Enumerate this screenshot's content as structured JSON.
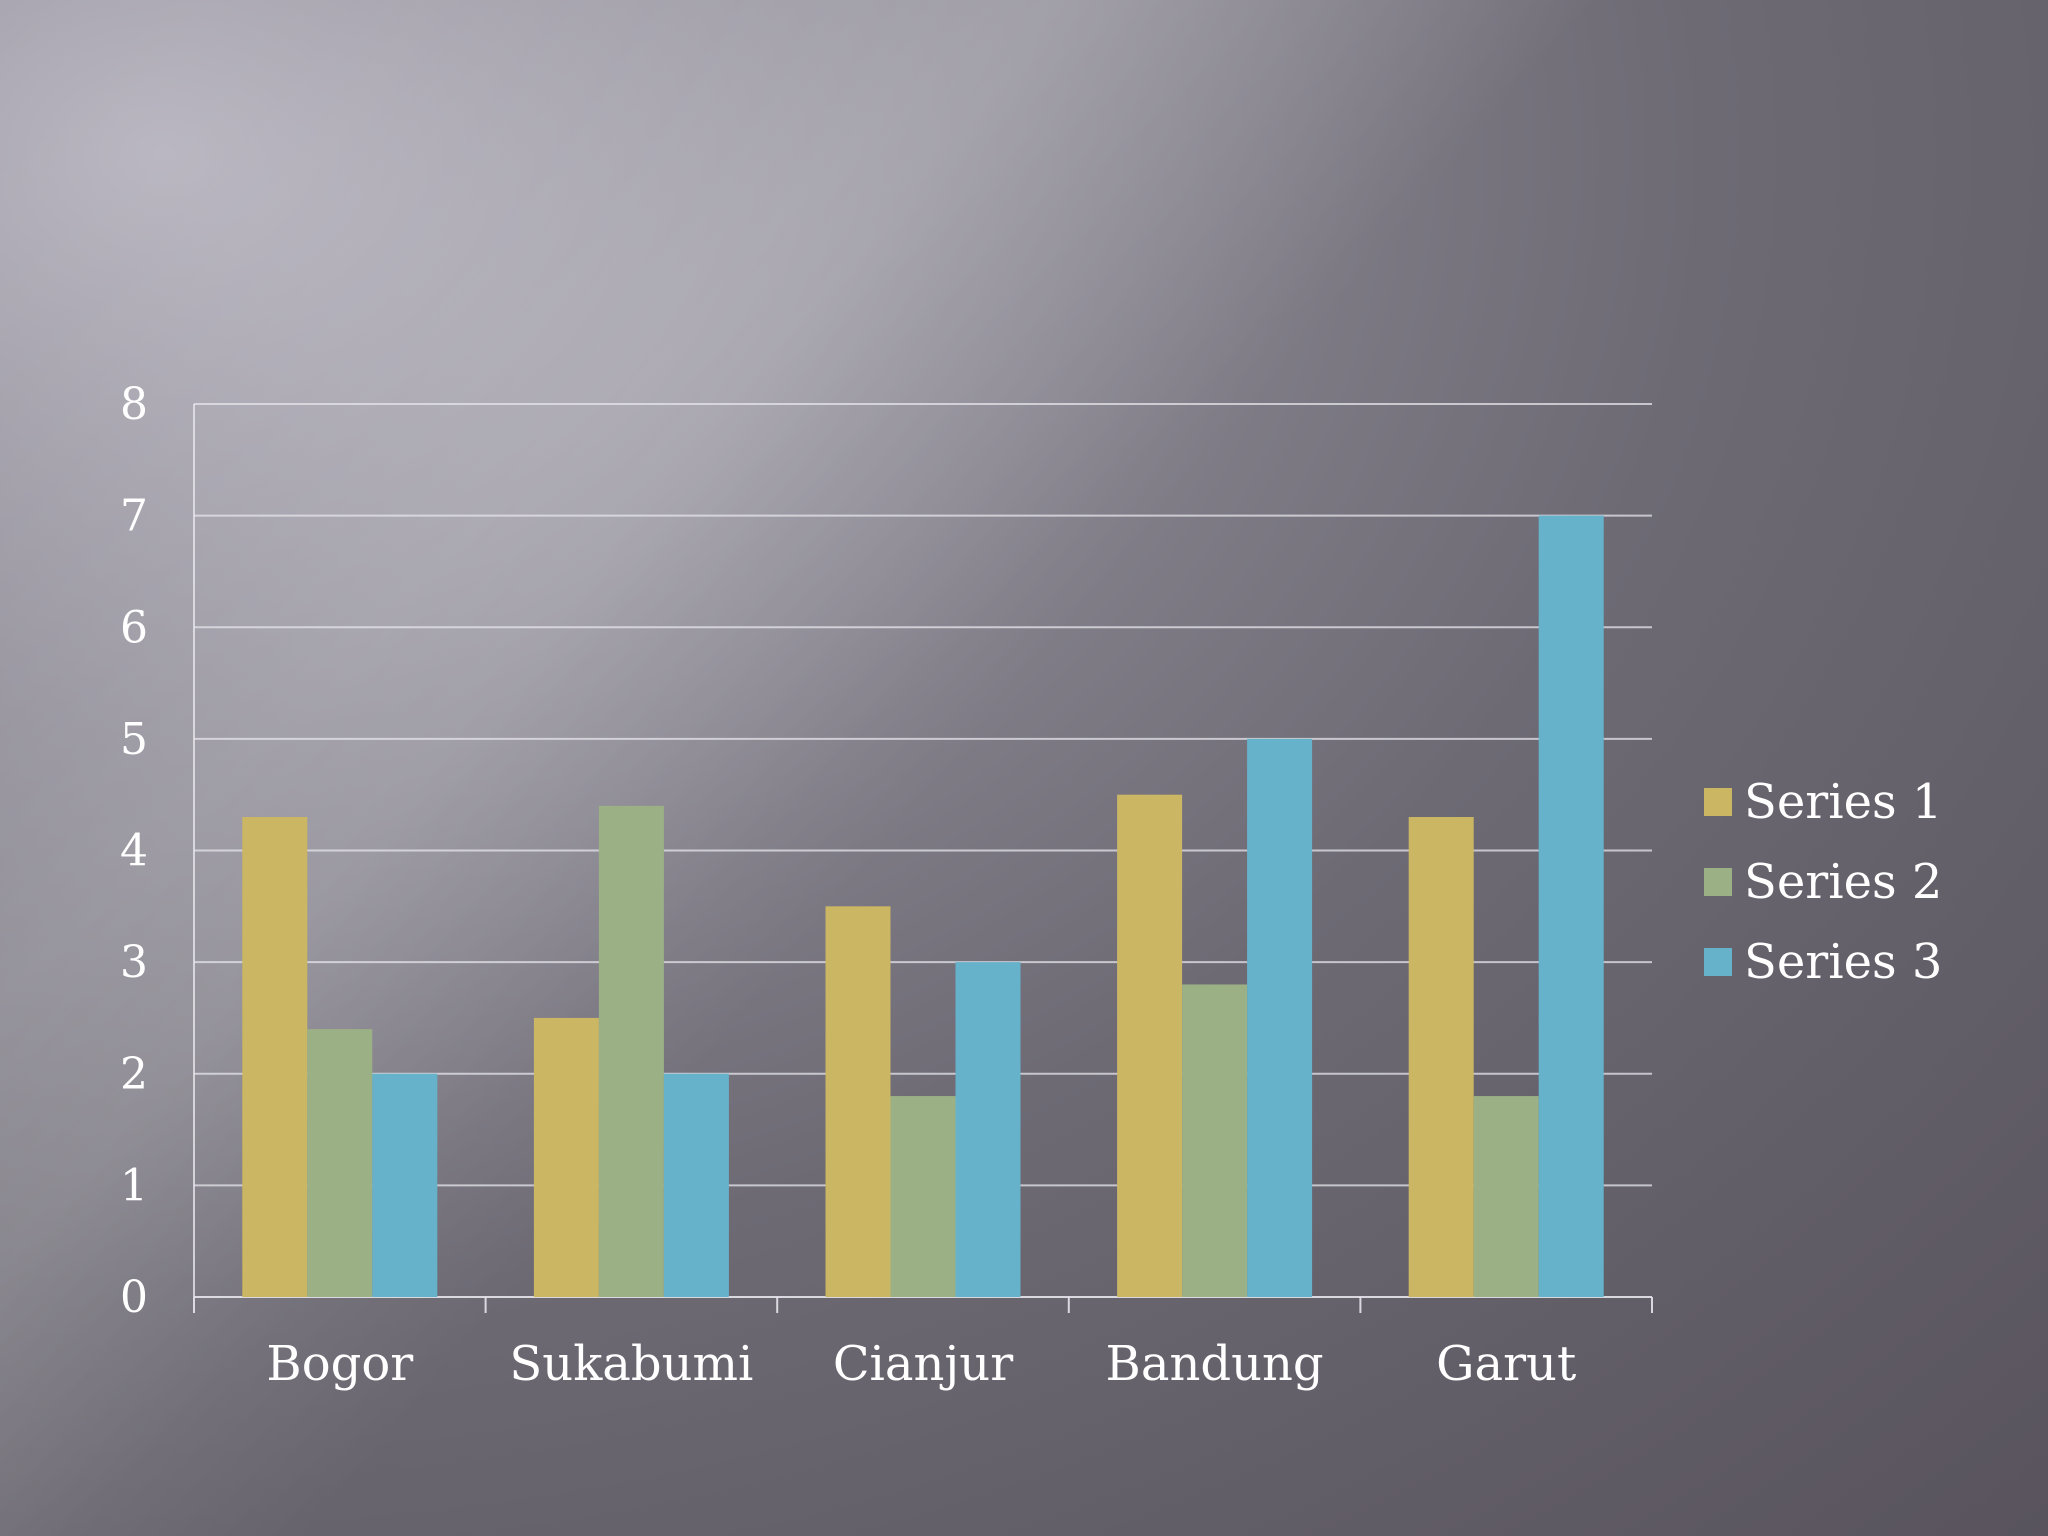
{
  "chart_data": {
    "type": "bar",
    "categories": [
      "Bogor",
      "Sukabumi",
      "Cianjur",
      "Bandung",
      "Garut"
    ],
    "series": [
      {
        "name": "Series 1",
        "color": "#cbb664",
        "values": [
          4.3,
          2.5,
          3.5,
          4.5,
          4.3
        ]
      },
      {
        "name": "Series 2",
        "color": "#9bb085",
        "values": [
          2.4,
          4.4,
          1.8,
          2.8,
          1.8
        ]
      },
      {
        "name": "Series 3",
        "color": "#67b2cb",
        "values": [
          2,
          2,
          3,
          5,
          7
        ]
      }
    ],
    "yticks": [
      "0",
      "1",
      "2",
      "3",
      "4",
      "5",
      "6",
      "7",
      "8"
    ],
    "ylim": [
      0,
      8
    ],
    "grid": true,
    "legend": "right"
  }
}
